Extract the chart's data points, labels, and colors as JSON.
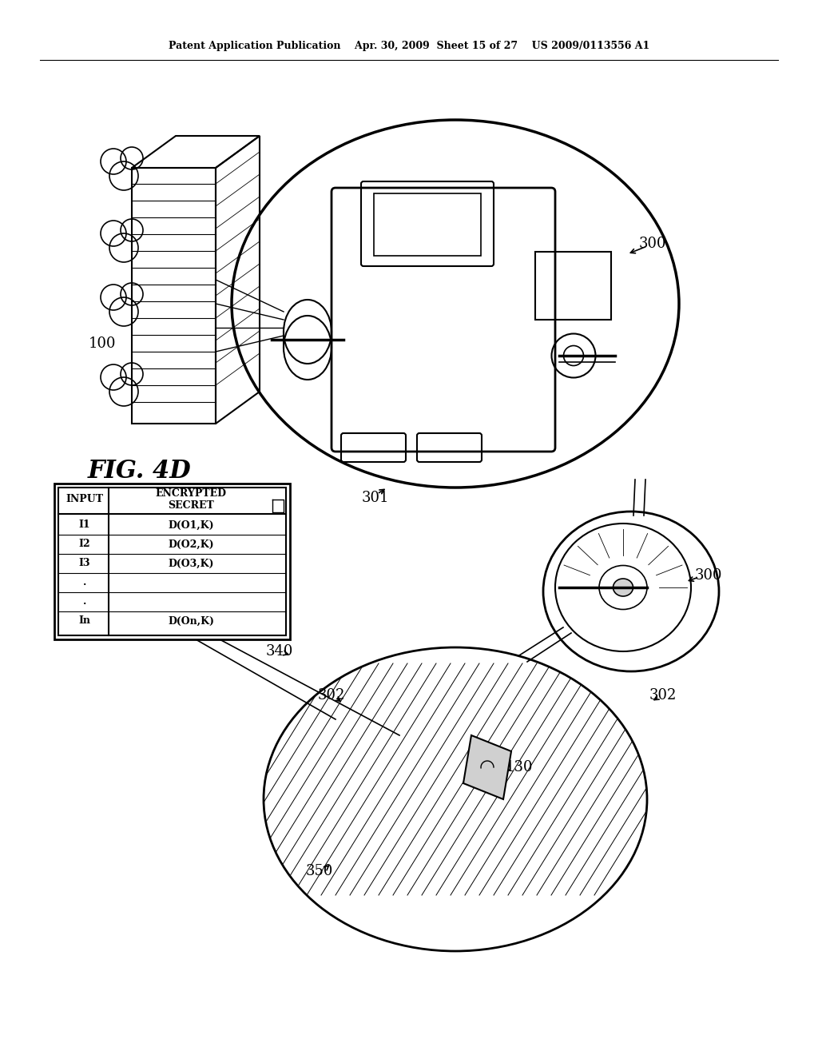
{
  "bg_color": "#ffffff",
  "header_text": "Patent Application Publication    Apr. 30, 2009  Sheet 15 of 27    US 2009/0113556 A1",
  "fig_label": "FIG. 4D",
  "label_100": "100",
  "label_300_top": "300",
  "label_301": "301",
  "label_300_mid": "300",
  "label_302_left": "302",
  "label_302_right": "302",
  "label_130": "130",
  "label_340": "340",
  "label_350": "350"
}
